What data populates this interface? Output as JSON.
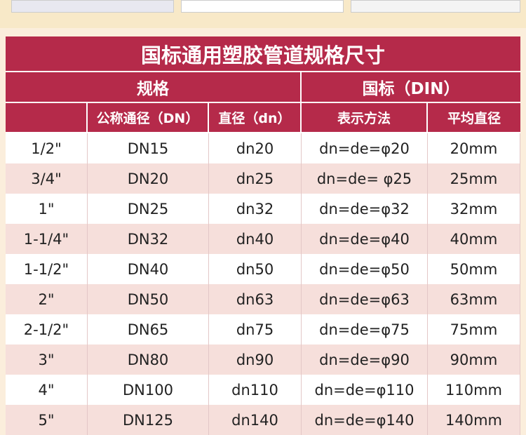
{
  "table": {
    "title": "国标通用塑胶管道规格尺寸",
    "header": [
      "规格",
      "国标（DIN）"
    ],
    "subheader": [
      "公称通径（DN）",
      "直径（dn）",
      "表示方法",
      "平均直径"
    ],
    "rows": [
      [
        "1/2\"",
        "DN15",
        "dn20",
        "dn=de=φ20",
        "20mm"
      ],
      [
        "3/4\"",
        "DN20",
        "dn25",
        "dn=de= φ25",
        "25mm"
      ],
      [
        "1\"",
        "DN25",
        "dn32",
        "dn=de=φ32",
        "32mm"
      ],
      [
        "1-1/4\"",
        "DN32",
        "dn40",
        "dn=de=φ40",
        "40mm"
      ],
      [
        "1-1/2\"",
        "DN40",
        "dn50",
        "dn=de=φ50",
        "50mm"
      ],
      [
        "2\"",
        "DN50",
        "dn63",
        "dn=de=φ63",
        "63mm"
      ],
      [
        "2-1/2\"",
        "DN65",
        "dn75",
        "dn=de=φ75",
        "75mm"
      ],
      [
        "3\"",
        "DN80",
        "dn90",
        "dn=de=φ90",
        "90mm"
      ],
      [
        "4\"",
        "DN100",
        "dn110",
        "dn=de=φ110",
        "110mm"
      ],
      [
        "5\"",
        "DN125",
        "dn140",
        "dn=de=φ140",
        "140mm"
      ]
    ]
  }
}
